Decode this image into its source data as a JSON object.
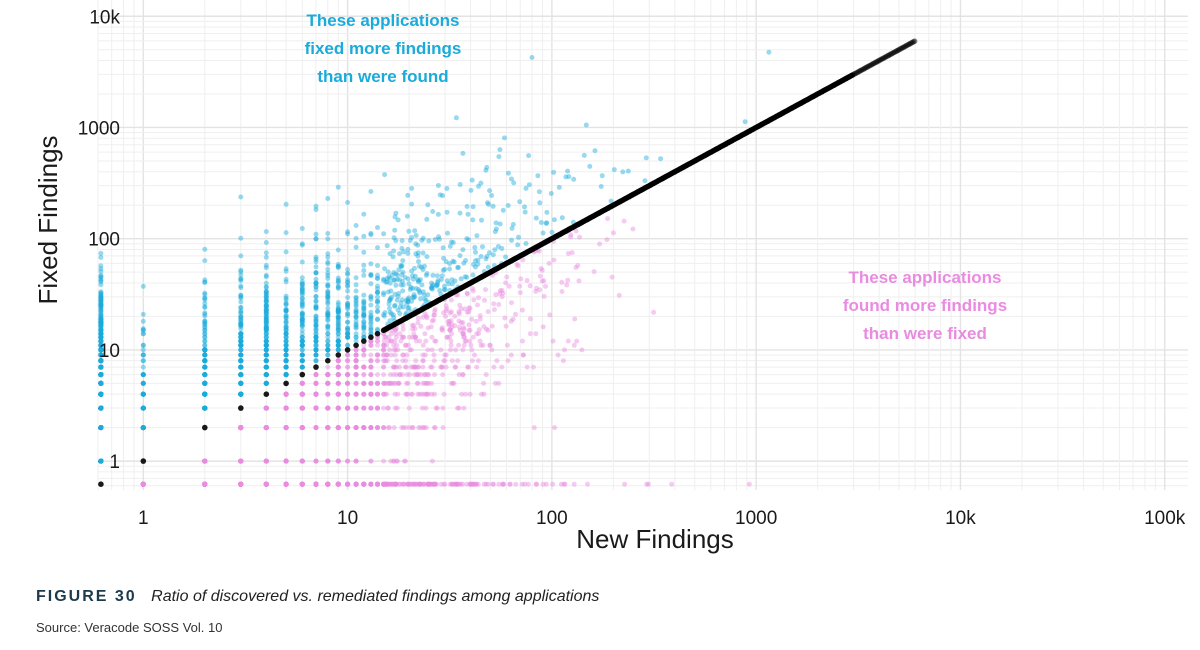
{
  "chart_data": {
    "type": "scatter",
    "title": "",
    "xlabel": "New Findings",
    "ylabel": "Fixed Findings",
    "x_scale": "log",
    "y_scale": "log",
    "xlim": [
      0.6,
      130000
    ],
    "ylim": [
      0.55,
      14000
    ],
    "x_ticks": [
      {
        "value": 1,
        "label": "1"
      },
      {
        "value": 10,
        "label": "10"
      },
      {
        "value": 100,
        "label": "100"
      },
      {
        "value": 1000,
        "label": "1000"
      },
      {
        "value": 10000,
        "label": "10k"
      },
      {
        "value": 100000,
        "label": "100k"
      }
    ],
    "y_ticks": [
      {
        "value": 1,
        "label": "1"
      },
      {
        "value": 10,
        "label": "10"
      },
      {
        "value": 100,
        "label": "100"
      },
      {
        "value": 1000,
        "label": "1000"
      },
      {
        "value": 10000,
        "label": "10k"
      }
    ],
    "grid": true,
    "series": [
      {
        "key": "fixed-more",
        "color": "#1aabdb"
      },
      {
        "key": "found-more",
        "color": "#e98be0"
      },
      {
        "key": "equal",
        "color": "#000000"
      }
    ],
    "point_count_approx": 9000,
    "annotations": [
      {
        "key": "fixed-more",
        "lines": [
          "These applications",
          "fixed more findings",
          "than were found"
        ],
        "color": "#1aabdb"
      },
      {
        "key": "found-more",
        "lines": [
          "These applications",
          "found more findings",
          "than were fixed"
        ],
        "color": "#e98be0"
      }
    ]
  },
  "caption": {
    "figure_label": "FIGURE 30",
    "text": "Ratio of discovered vs. remediated findings among applications",
    "source": "Source: Veracode SOSS Vol. 10"
  }
}
